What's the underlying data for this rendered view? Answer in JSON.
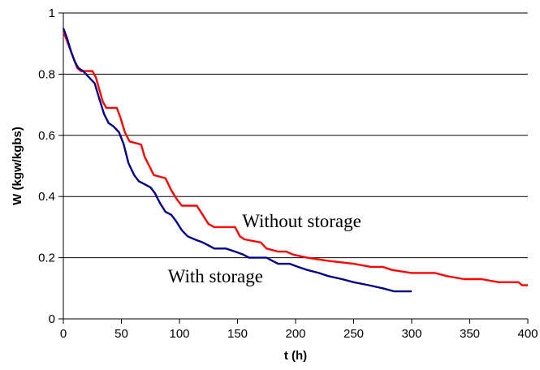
{
  "chart_data": {
    "type": "line",
    "xlabel": "t (h)",
    "ylabel": "W (kgw/kgbs)",
    "xlim": [
      0,
      400
    ],
    "ylim": [
      0,
      1
    ],
    "x_ticks": [
      "0",
      "50",
      "100",
      "150",
      "200",
      "250",
      "300",
      "350",
      "400"
    ],
    "y_ticks": [
      "0",
      "0.2",
      "0.4",
      "0.6",
      "0.8",
      "1"
    ],
    "grid": "horizontal",
    "series": [
      {
        "name": "Without storage",
        "color": "#ff0000",
        "points": [
          [
            0,
            0.94
          ],
          [
            3,
            0.91
          ],
          [
            6,
            0.88
          ],
          [
            9,
            0.85
          ],
          [
            12,
            0.82
          ],
          [
            15,
            0.81
          ],
          [
            25,
            0.81
          ],
          [
            28,
            0.79
          ],
          [
            31,
            0.75
          ],
          [
            34,
            0.71
          ],
          [
            37,
            0.69
          ],
          [
            46,
            0.69
          ],
          [
            49,
            0.66
          ],
          [
            53,
            0.61
          ],
          [
            57,
            0.58
          ],
          [
            67,
            0.57
          ],
          [
            70,
            0.53
          ],
          [
            74,
            0.5
          ],
          [
            78,
            0.47
          ],
          [
            88,
            0.46
          ],
          [
            93,
            0.42
          ],
          [
            98,
            0.39
          ],
          [
            102,
            0.37
          ],
          [
            115,
            0.37
          ],
          [
            120,
            0.34
          ],
          [
            125,
            0.31
          ],
          [
            130,
            0.3
          ],
          [
            148,
            0.3
          ],
          [
            152,
            0.27
          ],
          [
            156,
            0.26
          ],
          [
            170,
            0.25
          ],
          [
            175,
            0.23
          ],
          [
            185,
            0.22
          ],
          [
            192,
            0.22
          ],
          [
            198,
            0.21
          ],
          [
            210,
            0.2
          ],
          [
            228,
            0.19
          ],
          [
            250,
            0.18
          ],
          [
            265,
            0.17
          ],
          [
            275,
            0.17
          ],
          [
            283,
            0.16
          ],
          [
            300,
            0.15
          ],
          [
            320,
            0.15
          ],
          [
            330,
            0.14
          ],
          [
            345,
            0.13
          ],
          [
            360,
            0.13
          ],
          [
            375,
            0.12
          ],
          [
            392,
            0.12
          ],
          [
            395,
            0.11
          ],
          [
            400,
            0.11
          ]
        ]
      },
      {
        "name": "With storage",
        "color": "#00008b",
        "points": [
          [
            0,
            0.95
          ],
          [
            3,
            0.92
          ],
          [
            7,
            0.87
          ],
          [
            10,
            0.84
          ],
          [
            13,
            0.82
          ],
          [
            17,
            0.81
          ],
          [
            22,
            0.79
          ],
          [
            27,
            0.77
          ],
          [
            31,
            0.72
          ],
          [
            35,
            0.67
          ],
          [
            39,
            0.64
          ],
          [
            43,
            0.63
          ],
          [
            48,
            0.61
          ],
          [
            52,
            0.57
          ],
          [
            56,
            0.51
          ],
          [
            61,
            0.47
          ],
          [
            65,
            0.45
          ],
          [
            70,
            0.44
          ],
          [
            75,
            0.43
          ],
          [
            79,
            0.41
          ],
          [
            83,
            0.38
          ],
          [
            88,
            0.35
          ],
          [
            93,
            0.34
          ],
          [
            97,
            0.32
          ],
          [
            102,
            0.29
          ],
          [
            107,
            0.27
          ],
          [
            113,
            0.26
          ],
          [
            120,
            0.25
          ],
          [
            125,
            0.24
          ],
          [
            130,
            0.23
          ],
          [
            140,
            0.23
          ],
          [
            148,
            0.22
          ],
          [
            155,
            0.21
          ],
          [
            160,
            0.2
          ],
          [
            175,
            0.2
          ],
          [
            180,
            0.19
          ],
          [
            185,
            0.18
          ],
          [
            195,
            0.18
          ],
          [
            202,
            0.17
          ],
          [
            210,
            0.16
          ],
          [
            220,
            0.15
          ],
          [
            228,
            0.14
          ],
          [
            240,
            0.13
          ],
          [
            250,
            0.12
          ],
          [
            263,
            0.11
          ],
          [
            275,
            0.1
          ],
          [
            285,
            0.09
          ],
          [
            300,
            0.09
          ]
        ]
      }
    ],
    "annotations": [
      {
        "text": "Without storage",
        "x": 154,
        "y": 0.3
      },
      {
        "text": "With storage",
        "x": 90,
        "y": 0.12
      }
    ]
  }
}
